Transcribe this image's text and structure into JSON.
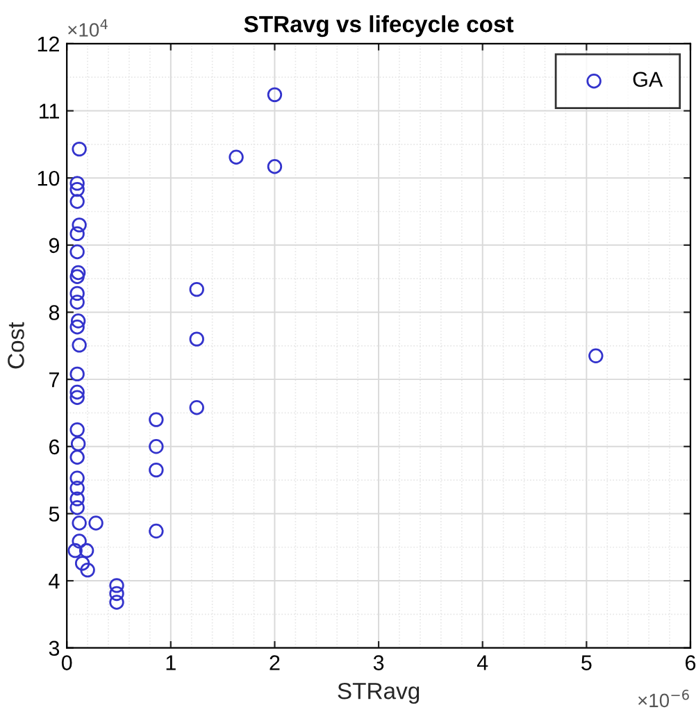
{
  "chart_data": {
    "type": "scatter",
    "title": "STRavg vs lifecycle cost",
    "xlabel": "STRavg",
    "ylabel": "Cost",
    "annotations": [
      "×10$^{4}$",
      "×10$^{−6}$"
    ],
    "xlim": [
      0,
      6
    ],
    "ylim": [
      3,
      12
    ],
    "xticks": [
      0,
      1,
      2,
      3,
      4,
      5,
      6
    ],
    "yticks": [
      3,
      4,
      5,
      6,
      7,
      8,
      9,
      10,
      11,
      12
    ],
    "grid": true,
    "legend": "top right",
    "marker": "circle",
    "series": [
      {
        "name": "GA",
        "color": "#3333cc",
        "x": [
          0.12,
          0.1,
          0.1,
          0.1,
          0.12,
          0.1,
          0.1,
          0.11,
          0.1,
          0.1,
          0.1,
          0.11,
          0.1,
          0.12,
          0.1,
          0.1,
          0.1,
          0.1,
          0.11,
          0.1,
          0.1,
          0.1,
          0.1,
          0.1,
          0.12,
          0.12,
          0.08,
          0.19,
          0.15,
          0.2,
          0.28,
          0.48,
          0.48,
          0.48,
          0.86,
          0.86,
          0.86,
          0.86,
          1.25,
          1.25,
          1.25,
          1.63,
          2.0,
          2.0,
          5.09
        ],
        "values": [
          10.43,
          9.92,
          9.83,
          9.65,
          9.3,
          9.17,
          8.9,
          8.59,
          8.53,
          8.28,
          8.15,
          7.87,
          7.78,
          7.51,
          7.08,
          6.81,
          6.73,
          6.25,
          6.04,
          5.84,
          5.53,
          5.38,
          5.22,
          5.09,
          4.86,
          4.59,
          4.45,
          4.45,
          4.26,
          4.16,
          4.86,
          3.93,
          3.81,
          3.68,
          6.4,
          6.0,
          5.65,
          4.74,
          8.34,
          7.6,
          6.58,
          10.31,
          11.24,
          10.17,
          7.35
        ]
      }
    ]
  }
}
